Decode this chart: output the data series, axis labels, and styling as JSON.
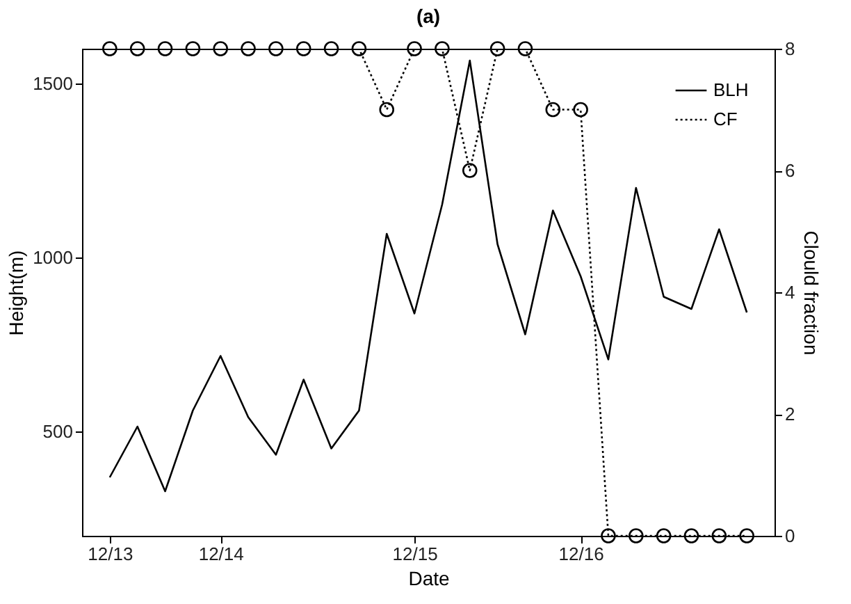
{
  "chart_data": {
    "type": "line",
    "title": "(a)",
    "xlabel": "Date",
    "ylabel": "Height(m)",
    "y2label": "Clould fraction",
    "categories": [
      "12/13",
      null,
      null,
      null,
      "12/14",
      null,
      null,
      null,
      null,
      null,
      null,
      "12/15",
      null,
      null,
      null,
      null,
      null,
      "12/16",
      null,
      null,
      null,
      null,
      null,
      null
    ],
    "ylim": [
      200,
      1600
    ],
    "yticks": [
      500,
      1000,
      1500
    ],
    "y2lim": [
      0,
      8
    ],
    "y2ticks": [
      0,
      2,
      4,
      6,
      8
    ],
    "series": [
      {
        "name": "BLH",
        "color": "#000000",
        "marker": "none",
        "line_style": "solid",
        "values": [
          368,
          514,
          328,
          560,
          717,
          541,
          433,
          649,
          451,
          560,
          1068,
          839,
          1152,
          1566,
          1038,
          779,
          1135,
          946,
          707,
          1200,
          887,
          852,
          1081,
          842
        ]
      },
      {
        "name": "CF",
        "color": "#000000",
        "marker": "circle",
        "line_style": "dotted",
        "axis": "y2",
        "values": [
          8,
          8,
          8,
          8,
          8,
          8,
          8,
          8,
          8,
          8,
          7,
          8,
          8,
          6,
          8,
          8,
          7,
          7,
          0,
          0,
          0,
          0,
          0,
          0
        ]
      }
    ],
    "grid": false,
    "legend": "top right"
  }
}
